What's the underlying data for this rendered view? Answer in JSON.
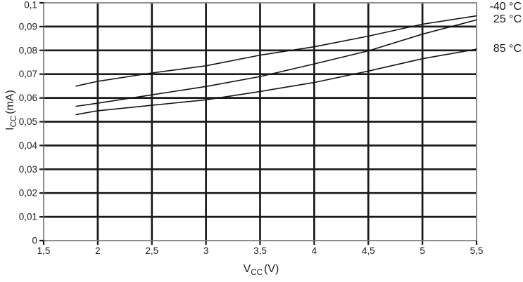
{
  "chart_data": {
    "type": "line",
    "title": "",
    "xlabel": "VCC (V)",
    "ylabel": "ICC (mA)",
    "x_axis": {
      "symbol": "V",
      "subscript": "CC",
      "suffix": "(V)"
    },
    "y_axis": {
      "symbol": "I",
      "subscript": "CC",
      "suffix": "(mA)"
    },
    "xlim": [
      1.5,
      5.5
    ],
    "ylim": [
      0,
      0.1
    ],
    "grid": true,
    "legend_position": "right-outside",
    "x_ticks": [
      {
        "v": 1.5,
        "label": "1,5"
      },
      {
        "v": 2.0,
        "label": "2"
      },
      {
        "v": 2.5,
        "label": "2,5"
      },
      {
        "v": 3.0,
        "label": "3"
      },
      {
        "v": 3.5,
        "label": "3,5"
      },
      {
        "v": 4.0,
        "label": "4"
      },
      {
        "v": 4.5,
        "label": "4,5"
      },
      {
        "v": 5.0,
        "label": "5"
      },
      {
        "v": 5.5,
        "label": "5,5"
      }
    ],
    "y_ticks": [
      {
        "v": 0.0,
        "label": "0"
      },
      {
        "v": 0.01,
        "label": "0,01"
      },
      {
        "v": 0.02,
        "label": "0,02"
      },
      {
        "v": 0.03,
        "label": "0,03"
      },
      {
        "v": 0.04,
        "label": "0,04"
      },
      {
        "v": 0.05,
        "label": "0,05"
      },
      {
        "v": 0.06,
        "label": "0,06"
      },
      {
        "v": 0.07,
        "label": "0,07"
      },
      {
        "v": 0.08,
        "label": "0,08"
      },
      {
        "v": 0.09,
        "label": "0,09"
      },
      {
        "v": 0.1,
        "label": "0,1"
      }
    ],
    "series": [
      {
        "key": "minus-40c",
        "name": "-40 °C",
        "x": [
          1.8,
          2.0,
          2.5,
          3.0,
          3.5,
          4.0,
          4.5,
          5.0,
          5.5
        ],
        "values": [
          0.065,
          0.067,
          0.0705,
          0.0735,
          0.078,
          0.0815,
          0.086,
          0.091,
          0.0945
        ]
      },
      {
        "key": "25c",
        "name": "25 °C",
        "x": [
          1.8,
          2.0,
          2.5,
          3.0,
          3.5,
          4.0,
          4.5,
          5.0,
          5.5
        ],
        "values": [
          0.0565,
          0.0578,
          0.0613,
          0.0648,
          0.069,
          0.0743,
          0.0798,
          0.0868,
          0.0928
        ]
      },
      {
        "key": "85c",
        "name": "85 °C",
        "x": [
          1.8,
          2.0,
          2.5,
          3.0,
          3.5,
          4.0,
          4.5,
          5.0,
          5.5
        ],
        "values": [
          0.053,
          0.0546,
          0.0569,
          0.0592,
          0.0627,
          0.0665,
          0.0713,
          0.0765,
          0.0805
        ]
      }
    ],
    "colors": {
      "background": "#ffffff",
      "line": "#141414",
      "grid": "#1a1a1a",
      "border": "#8d8d8d",
      "text": "#1d1d1d"
    }
  }
}
